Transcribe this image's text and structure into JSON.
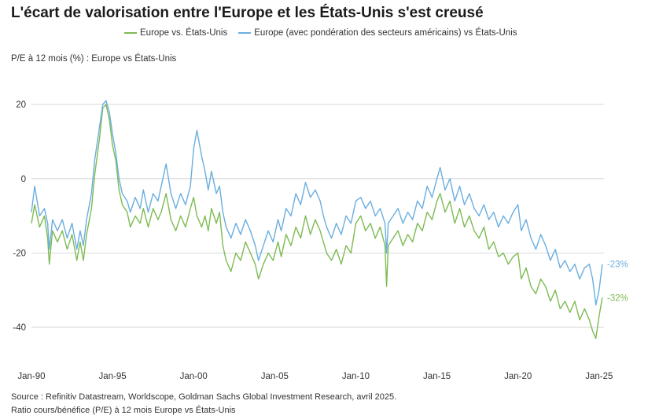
{
  "title": "L'écart de valorisation entre l'Europe et les États-Unis s'est creusé",
  "subtitle": "P/E à 12 mois (%) : Europe vs États-Unis",
  "footer": {
    "source": "Source : Refinitiv Datastream, Worldscope, Goldman Sachs Global Investment Research, avril 2025.",
    "note": "Ratio cours/bénéfice (P/E) à 12 mois Europe vs États-Unis"
  },
  "colors": {
    "green": "#7dbb52",
    "blue": "#6aaee0",
    "grid": "#d9d9d9",
    "text": "#333333"
  },
  "chart_data": {
    "type": "line",
    "title": "L'écart de valorisation entre l'Europe et les États-Unis s'est creusé",
    "ylabel": "P/E à 12 mois (%) : Europe vs États-Unis",
    "xlabel": "",
    "xlim": [
      1990.0,
      2025.3
    ],
    "ylim": [
      -48,
      27
    ],
    "x_ticks": [
      {
        "x": 1990,
        "label": "Jan-90"
      },
      {
        "x": 1995,
        "label": "Jan-95"
      },
      {
        "x": 2000,
        "label": "Jan-00"
      },
      {
        "x": 2005,
        "label": "Jan-05"
      },
      {
        "x": 2010,
        "label": "Jan-10"
      },
      {
        "x": 2015,
        "label": "Jan-15"
      },
      {
        "x": 2020,
        "label": "Jan-20"
      },
      {
        "x": 2025,
        "label": "Jan-25"
      }
    ],
    "y_ticks": [
      20,
      0,
      -20,
      -40
    ],
    "grid": true,
    "legend": "top",
    "series": [
      {
        "name": "Europe vs. États-Unis",
        "color": "#7dbb52",
        "end_label": "-32%",
        "points": [
          [
            1990.0,
            -12
          ],
          [
            1990.2,
            -7
          ],
          [
            1990.5,
            -13
          ],
          [
            1990.8,
            -10
          ],
          [
            1991.0,
            -16
          ],
          [
            1991.1,
            -23
          ],
          [
            1991.3,
            -14
          ],
          [
            1991.6,
            -17
          ],
          [
            1991.9,
            -14
          ],
          [
            1992.2,
            -19
          ],
          [
            1992.5,
            -15
          ],
          [
            1992.8,
            -22
          ],
          [
            1993.0,
            -17
          ],
          [
            1993.2,
            -22
          ],
          [
            1993.4,
            -15
          ],
          [
            1993.7,
            -8
          ],
          [
            1993.9,
            1
          ],
          [
            1994.2,
            11
          ],
          [
            1994.4,
            19
          ],
          [
            1994.6,
            20
          ],
          [
            1994.8,
            16
          ],
          [
            1995.0,
            9
          ],
          [
            1995.2,
            5
          ],
          [
            1995.4,
            -3
          ],
          [
            1995.6,
            -7
          ],
          [
            1995.9,
            -9
          ],
          [
            1996.1,
            -13
          ],
          [
            1996.4,
            -10
          ],
          [
            1996.7,
            -12
          ],
          [
            1996.9,
            -8
          ],
          [
            1997.2,
            -13
          ],
          [
            1997.5,
            -8
          ],
          [
            1997.8,
            -11
          ],
          [
            1998.0,
            -9
          ],
          [
            1998.3,
            -4
          ],
          [
            1998.6,
            -11
          ],
          [
            1998.9,
            -14
          ],
          [
            1999.2,
            -10
          ],
          [
            1999.5,
            -13
          ],
          [
            1999.8,
            -8
          ],
          [
            2000.0,
            -5
          ],
          [
            2000.2,
            -10
          ],
          [
            2000.5,
            -13
          ],
          [
            2000.7,
            -10
          ],
          [
            2000.9,
            -14
          ],
          [
            2001.1,
            -8
          ],
          [
            2001.4,
            -12
          ],
          [
            2001.6,
            -9
          ],
          [
            2001.8,
            -18
          ],
          [
            2002.0,
            -22
          ],
          [
            2002.3,
            -25
          ],
          [
            2002.6,
            -20
          ],
          [
            2002.9,
            -22
          ],
          [
            2003.2,
            -17
          ],
          [
            2003.5,
            -20
          ],
          [
            2003.8,
            -23
          ],
          [
            2004.0,
            -27
          ],
          [
            2004.3,
            -23
          ],
          [
            2004.6,
            -20
          ],
          [
            2004.9,
            -22
          ],
          [
            2005.2,
            -17
          ],
          [
            2005.4,
            -21
          ],
          [
            2005.7,
            -15
          ],
          [
            2006.0,
            -18
          ],
          [
            2006.3,
            -13
          ],
          [
            2006.6,
            -16
          ],
          [
            2006.9,
            -10
          ],
          [
            2007.2,
            -15
          ],
          [
            2007.5,
            -11
          ],
          [
            2007.8,
            -14
          ],
          [
            2008.0,
            -17
          ],
          [
            2008.2,
            -20
          ],
          [
            2008.5,
            -22
          ],
          [
            2008.8,
            -19
          ],
          [
            2009.1,
            -23
          ],
          [
            2009.4,
            -18
          ],
          [
            2009.7,
            -20
          ],
          [
            2010.0,
            -12
          ],
          [
            2010.3,
            -10
          ],
          [
            2010.6,
            -14
          ],
          [
            2010.9,
            -12
          ],
          [
            2011.2,
            -16
          ],
          [
            2011.5,
            -13
          ],
          [
            2011.8,
            -18
          ],
          [
            2011.9,
            -29
          ],
          [
            2012.0,
            -18
          ],
          [
            2012.3,
            -16
          ],
          [
            2012.6,
            -14
          ],
          [
            2012.9,
            -18
          ],
          [
            2013.2,
            -15
          ],
          [
            2013.5,
            -17
          ],
          [
            2013.8,
            -12
          ],
          [
            2014.1,
            -14
          ],
          [
            2014.4,
            -9
          ],
          [
            2014.7,
            -11
          ],
          [
            2015.0,
            -6
          ],
          [
            2015.2,
            -4
          ],
          [
            2015.5,
            -9
          ],
          [
            2015.8,
            -6
          ],
          [
            2016.1,
            -12
          ],
          [
            2016.4,
            -8
          ],
          [
            2016.7,
            -13
          ],
          [
            2017.0,
            -10
          ],
          [
            2017.3,
            -14
          ],
          [
            2017.6,
            -16
          ],
          [
            2017.9,
            -13
          ],
          [
            2018.2,
            -19
          ],
          [
            2018.5,
            -17
          ],
          [
            2018.8,
            -21
          ],
          [
            2019.1,
            -20
          ],
          [
            2019.4,
            -23
          ],
          [
            2019.7,
            -21
          ],
          [
            2020.0,
            -20
          ],
          [
            2020.2,
            -27
          ],
          [
            2020.5,
            -24
          ],
          [
            2020.8,
            -29
          ],
          [
            2021.1,
            -31
          ],
          [
            2021.4,
            -27
          ],
          [
            2021.7,
            -29
          ],
          [
            2022.0,
            -33
          ],
          [
            2022.3,
            -30
          ],
          [
            2022.6,
            -35
          ],
          [
            2022.9,
            -33
          ],
          [
            2023.2,
            -36
          ],
          [
            2023.5,
            -33
          ],
          [
            2023.8,
            -38
          ],
          [
            2024.1,
            -35
          ],
          [
            2024.4,
            -38
          ],
          [
            2024.6,
            -41
          ],
          [
            2024.8,
            -43
          ],
          [
            2025.0,
            -37
          ],
          [
            2025.2,
            -32
          ]
        ]
      },
      {
        "name": "Europe (avec pondération des secteurs américains) vs États-Unis",
        "color": "#6aaee0",
        "end_label": "-23%",
        "points": [
          [
            1990.0,
            -9
          ],
          [
            1990.2,
            -2
          ],
          [
            1990.5,
            -10
          ],
          [
            1990.8,
            -8
          ],
          [
            1991.0,
            -12
          ],
          [
            1991.1,
            -19
          ],
          [
            1991.3,
            -11
          ],
          [
            1991.6,
            -14
          ],
          [
            1991.9,
            -11
          ],
          [
            1992.2,
            -16
          ],
          [
            1992.5,
            -12
          ],
          [
            1992.8,
            -19
          ],
          [
            1993.0,
            -14
          ],
          [
            1993.2,
            -18
          ],
          [
            1993.4,
            -11
          ],
          [
            1993.7,
            -4
          ],
          [
            1993.9,
            5
          ],
          [
            1994.2,
            14
          ],
          [
            1994.4,
            20
          ],
          [
            1994.6,
            21
          ],
          [
            1994.8,
            18
          ],
          [
            1995.0,
            12
          ],
          [
            1995.2,
            7
          ],
          [
            1995.4,
            0
          ],
          [
            1995.6,
            -4
          ],
          [
            1995.9,
            -6
          ],
          [
            1996.1,
            -9
          ],
          [
            1996.4,
            -5
          ],
          [
            1996.7,
            -8
          ],
          [
            1996.9,
            -3
          ],
          [
            1997.2,
            -9
          ],
          [
            1997.5,
            -4
          ],
          [
            1997.8,
            -6
          ],
          [
            1998.0,
            -2
          ],
          [
            1998.3,
            4
          ],
          [
            1998.6,
            -4
          ],
          [
            1998.9,
            -8
          ],
          [
            1999.2,
            -4
          ],
          [
            1999.5,
            -7
          ],
          [
            1999.8,
            -2
          ],
          [
            2000.0,
            8
          ],
          [
            2000.2,
            13
          ],
          [
            2000.5,
            6
          ],
          [
            2000.7,
            2
          ],
          [
            2000.9,
            -3
          ],
          [
            2001.1,
            2
          ],
          [
            2001.4,
            -4
          ],
          [
            2001.6,
            -2
          ],
          [
            2001.8,
            -9
          ],
          [
            2002.0,
            -13
          ],
          [
            2002.3,
            -16
          ],
          [
            2002.6,
            -12
          ],
          [
            2002.9,
            -15
          ],
          [
            2003.2,
            -11
          ],
          [
            2003.5,
            -14
          ],
          [
            2003.8,
            -18
          ],
          [
            2004.0,
            -22
          ],
          [
            2004.3,
            -18
          ],
          [
            2004.6,
            -14
          ],
          [
            2004.9,
            -17
          ],
          [
            2005.2,
            -11
          ],
          [
            2005.4,
            -14
          ],
          [
            2005.7,
            -8
          ],
          [
            2006.0,
            -10
          ],
          [
            2006.3,
            -4
          ],
          [
            2006.6,
            -7
          ],
          [
            2006.9,
            -1
          ],
          [
            2007.2,
            -5
          ],
          [
            2007.5,
            -3
          ],
          [
            2007.8,
            -6
          ],
          [
            2008.0,
            -10
          ],
          [
            2008.2,
            -13
          ],
          [
            2008.5,
            -16
          ],
          [
            2008.8,
            -12
          ],
          [
            2009.1,
            -15
          ],
          [
            2009.4,
            -10
          ],
          [
            2009.7,
            -12
          ],
          [
            2010.0,
            -6
          ],
          [
            2010.3,
            -5
          ],
          [
            2010.6,
            -8
          ],
          [
            2010.9,
            -6
          ],
          [
            2011.2,
            -10
          ],
          [
            2011.5,
            -8
          ],
          [
            2011.8,
            -12
          ],
          [
            2011.9,
            -20
          ],
          [
            2012.0,
            -12
          ],
          [
            2012.3,
            -10
          ],
          [
            2012.6,
            -8
          ],
          [
            2012.9,
            -12
          ],
          [
            2013.2,
            -9
          ],
          [
            2013.5,
            -11
          ],
          [
            2013.8,
            -6
          ],
          [
            2014.1,
            -8
          ],
          [
            2014.4,
            -2
          ],
          [
            2014.7,
            -5
          ],
          [
            2015.0,
            0
          ],
          [
            2015.2,
            3
          ],
          [
            2015.5,
            -3
          ],
          [
            2015.8,
            0
          ],
          [
            2016.1,
            -6
          ],
          [
            2016.4,
            -2
          ],
          [
            2016.7,
            -7
          ],
          [
            2017.0,
            -4
          ],
          [
            2017.3,
            -8
          ],
          [
            2017.6,
            -10
          ],
          [
            2017.9,
            -7
          ],
          [
            2018.2,
            -11
          ],
          [
            2018.5,
            -9
          ],
          [
            2018.8,
            -13
          ],
          [
            2019.1,
            -10
          ],
          [
            2019.4,
            -12
          ],
          [
            2019.7,
            -9
          ],
          [
            2020.0,
            -7
          ],
          [
            2020.2,
            -14
          ],
          [
            2020.5,
            -11
          ],
          [
            2020.8,
            -16
          ],
          [
            2021.1,
            -19
          ],
          [
            2021.4,
            -15
          ],
          [
            2021.7,
            -18
          ],
          [
            2022.0,
            -22
          ],
          [
            2022.3,
            -19
          ],
          [
            2022.6,
            -24
          ],
          [
            2022.9,
            -22
          ],
          [
            2023.2,
            -25
          ],
          [
            2023.5,
            -23
          ],
          [
            2023.8,
            -27
          ],
          [
            2024.1,
            -24
          ],
          [
            2024.4,
            -23
          ],
          [
            2024.6,
            -27
          ],
          [
            2024.8,
            -34
          ],
          [
            2025.0,
            -30
          ],
          [
            2025.2,
            -23
          ]
        ]
      }
    ]
  }
}
